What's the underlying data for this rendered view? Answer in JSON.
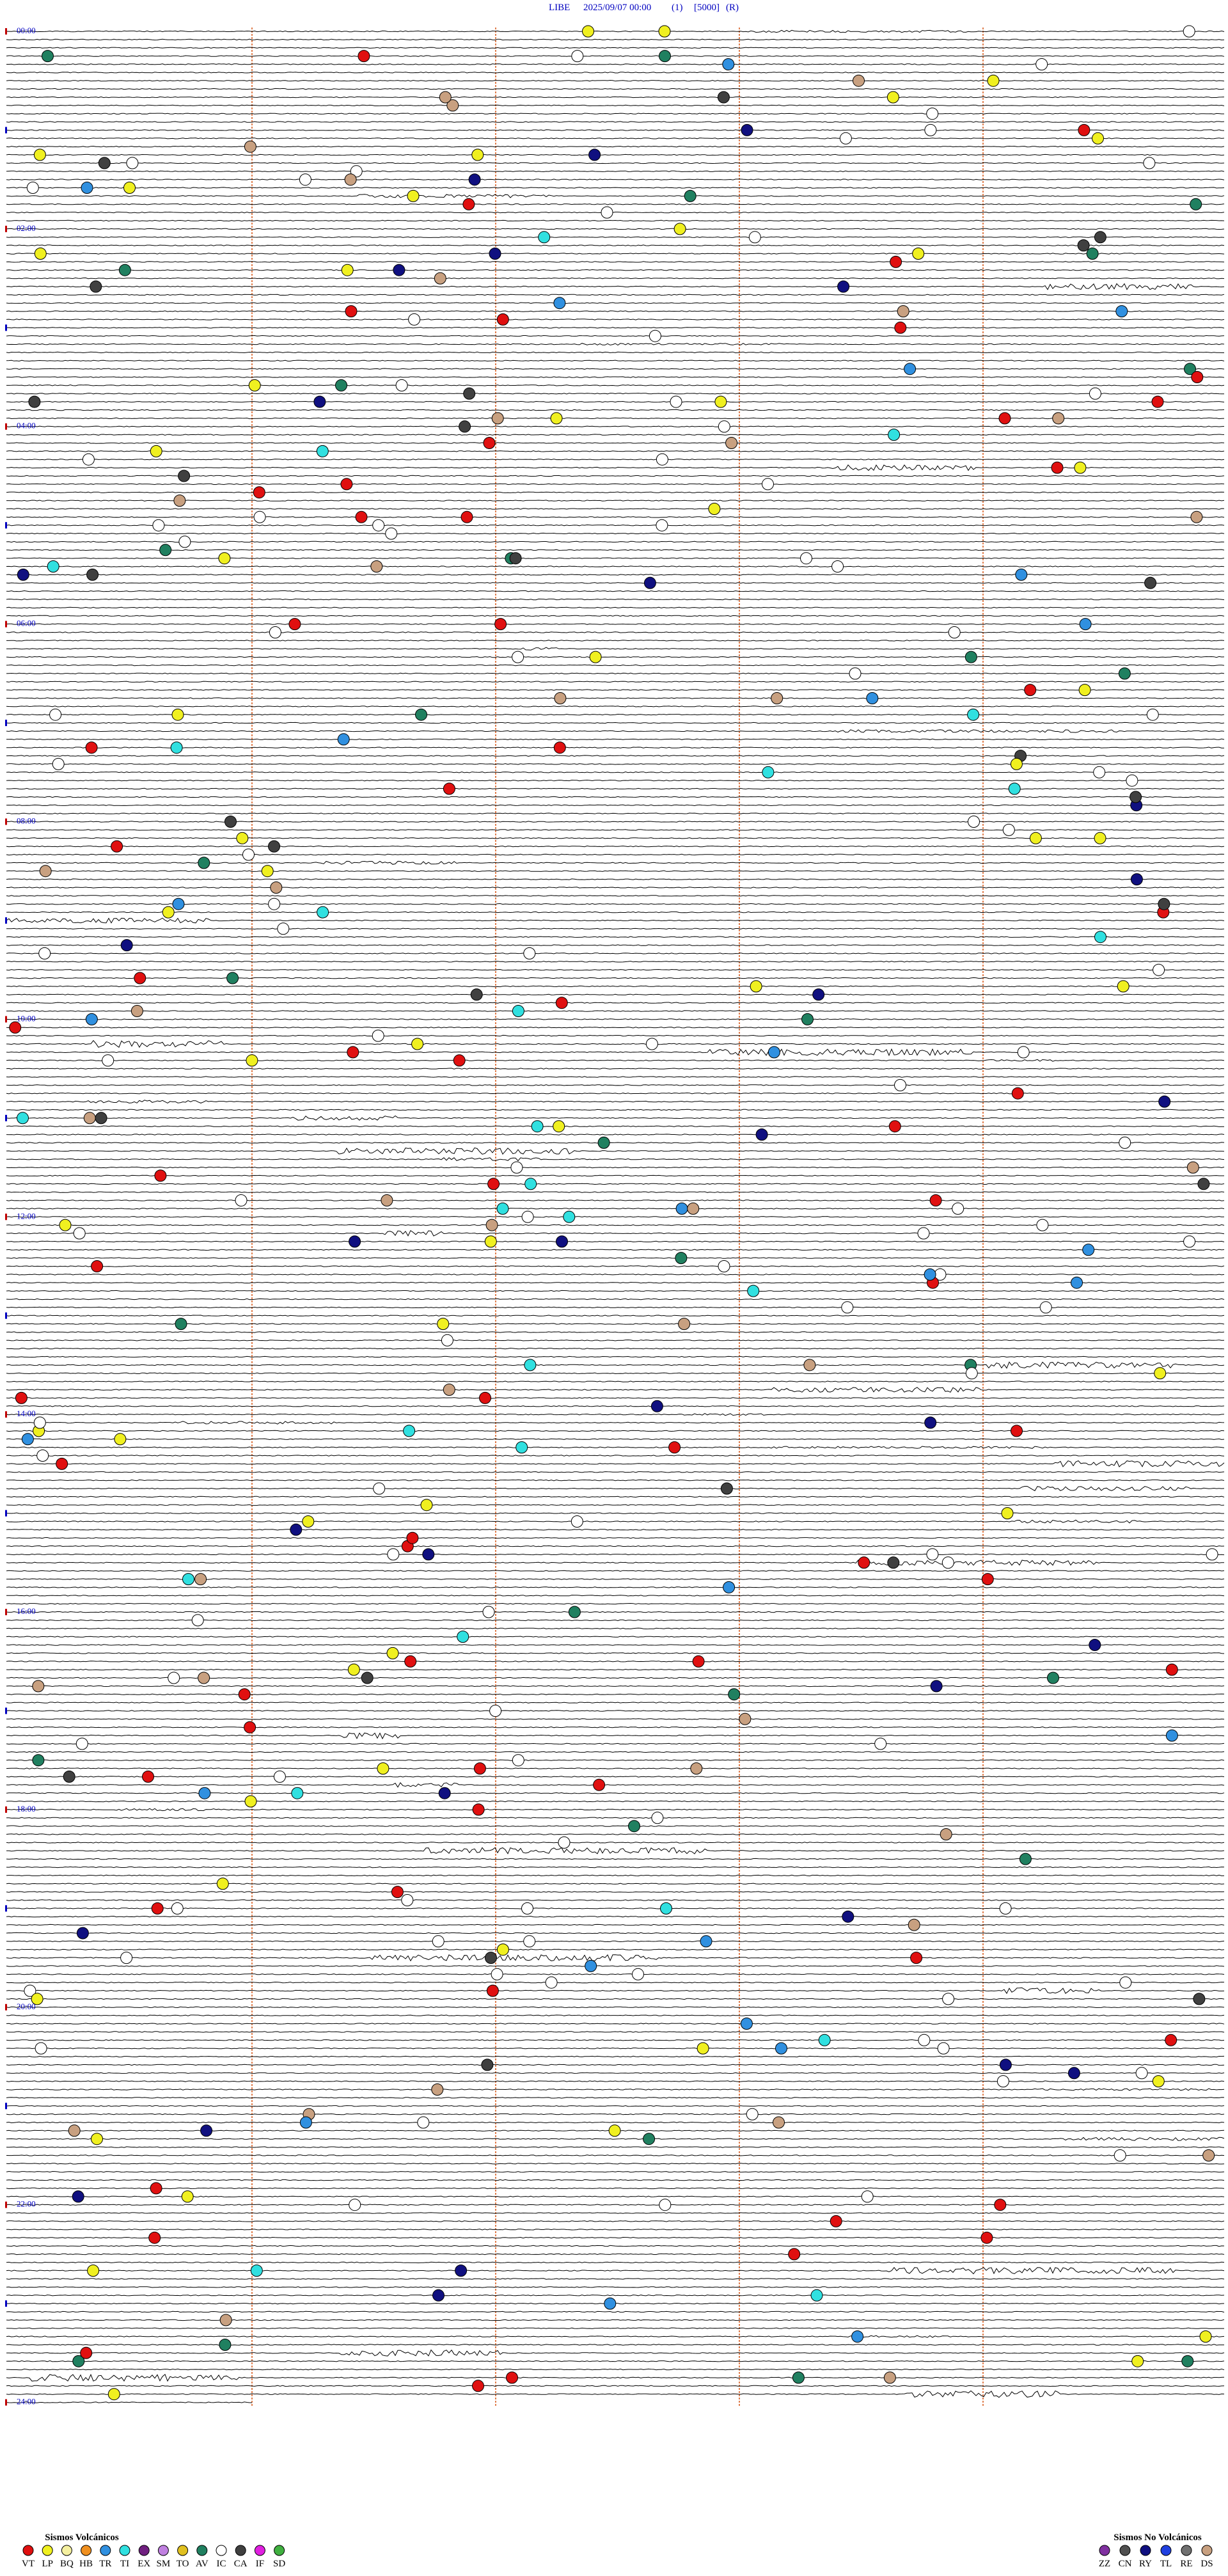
{
  "header": {
    "station": "LIBE",
    "datetime": "2025/09/07 00:00",
    "channel": "(1)",
    "scale": "[5000]",
    "mode": "(R)"
  },
  "time_labels": [
    "00:00",
    "02:00",
    "04:00",
    "06:00",
    "08:00",
    "10:00",
    "12:00",
    "14:00",
    "16:00",
    "18:00",
    "20:00",
    "22:00",
    "24:00"
  ],
  "legend_volcanic": {
    "title": "Sismos Volcánicos",
    "items": [
      {
        "code": "VT",
        "color": "#e01010"
      },
      {
        "code": "LP",
        "color": "#f0f020"
      },
      {
        "code": "BQ",
        "color": "#f5f0a0"
      },
      {
        "code": "HB",
        "color": "#f09020"
      },
      {
        "code": "TR",
        "color": "#3090e0"
      },
      {
        "code": "TI",
        "color": "#30e0e0"
      },
      {
        "code": "EX",
        "color": "#702080"
      },
      {
        "code": "SM",
        "color": "#c080e0"
      },
      {
        "code": "TO",
        "color": "#e0c020"
      },
      {
        "code": "AV",
        "color": "#208060"
      },
      {
        "code": "IC",
        "color": "#ffffff"
      },
      {
        "code": "CA",
        "color": "#404040"
      },
      {
        "code": "IF",
        "color": "#e020e0"
      },
      {
        "code": "SD",
        "color": "#40b040"
      }
    ]
  },
  "legend_non_volcanic": {
    "title": "Sismos No Volcánicos",
    "items": [
      {
        "code": "ZZ",
        "color": "#8030a0"
      },
      {
        "code": "CN",
        "color": "#505050"
      },
      {
        "code": "RY",
        "color": "#101080"
      },
      {
        "code": "TL",
        "color": "#2040e0"
      },
      {
        "code": "RE",
        "color": "#707070"
      },
      {
        "code": "DS",
        "color": "#c8a080"
      }
    ]
  }
}
